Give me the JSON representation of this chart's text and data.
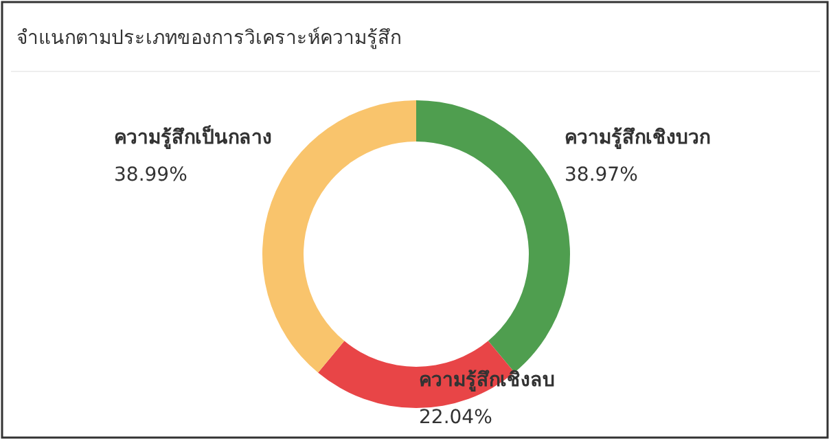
{
  "chart_data": {
    "type": "donut",
    "title": "จำแนกตามประเภทของการวิเคราะห์ความรู้สึก",
    "categories": [
      "ความรู้สึกเชิงบวก",
      "ความรู้สึกเชิงลบ",
      "ความรู้สึกเป็นกลาง"
    ],
    "values": [
      38.97,
      22.04,
      38.99
    ],
    "colors": [
      "#4f9e4f",
      "#e84547",
      "#f9c46c"
    ],
    "value_labels": [
      "38.97%",
      "22.04%",
      "38.99%"
    ]
  }
}
